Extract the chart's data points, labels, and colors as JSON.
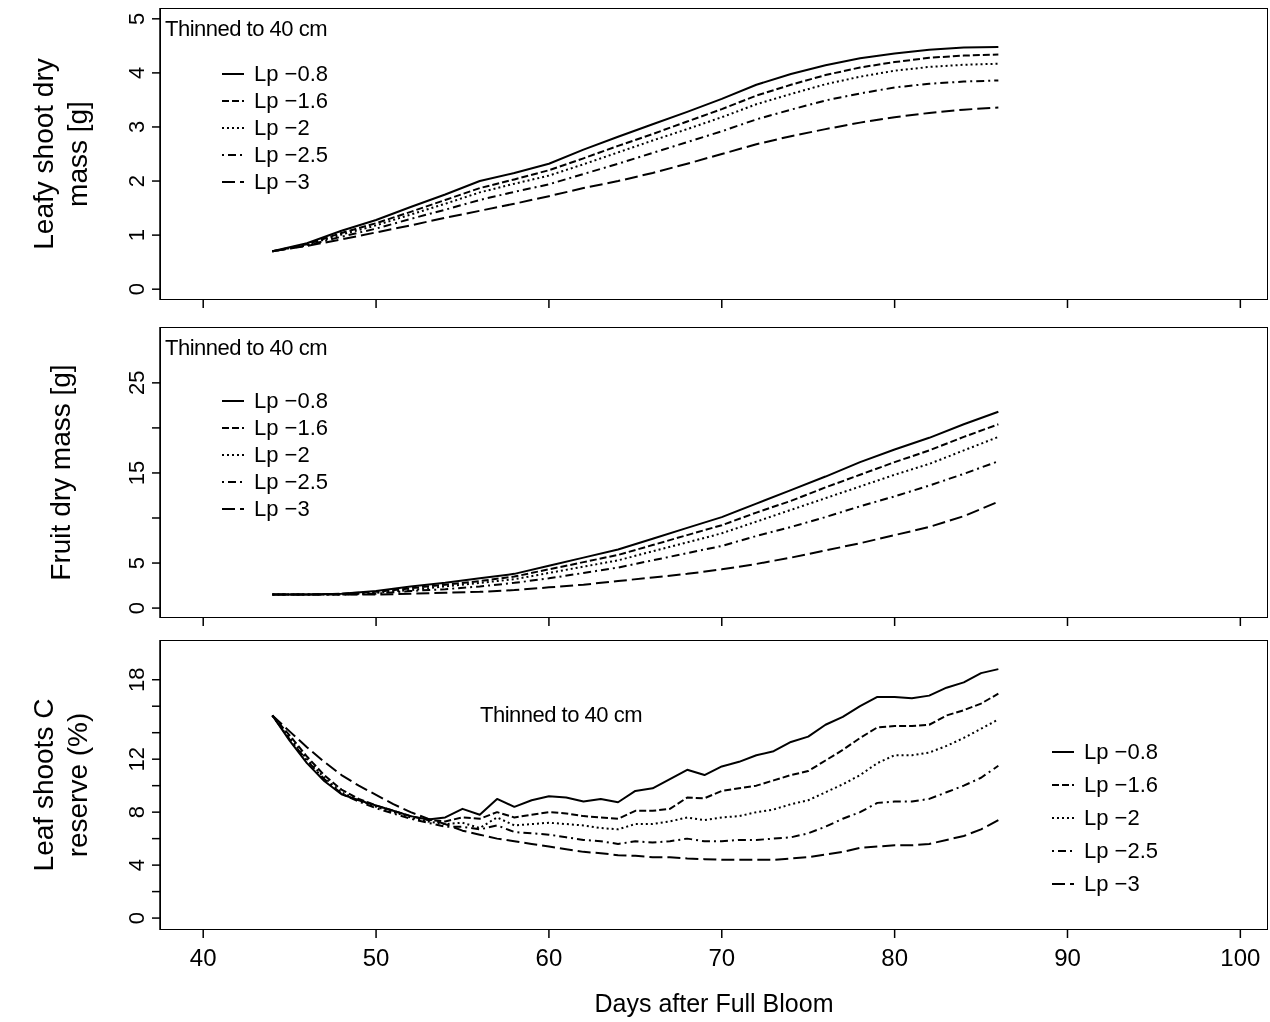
{
  "chart_data": [
    {
      "type": "line",
      "ylabel": "Leafy shoot dry mass [g]",
      "annotations": [
        "Thinned to 40 cm"
      ],
      "x": [
        44,
        46,
        48,
        50,
        52,
        54,
        56,
        58,
        60,
        62,
        64,
        66,
        68,
        70,
        72,
        74,
        76,
        78,
        80,
        82,
        84,
        86
      ],
      "xlim": [
        37.5,
        101.6
      ],
      "xticks": [
        40,
        50,
        60,
        70,
        80,
        90,
        100
      ],
      "ylim": [
        -0.2,
        5.2
      ],
      "yticks": [
        0,
        1,
        2,
        3,
        4,
        5
      ],
      "tick_labels": "y",
      "legend": "top left",
      "series": [
        {
          "name": "Lp −0.8",
          "color": "#000000",
          "line_style": "solid",
          "values": [
            0.7,
            0.85,
            1.08,
            1.28,
            1.52,
            1.75,
            2.0,
            2.15,
            2.32,
            2.58,
            2.82,
            3.05,
            3.28,
            3.52,
            3.78,
            3.98,
            4.14,
            4.27,
            4.36,
            4.43,
            4.47,
            4.48
          ]
        },
        {
          "name": "Lp −1.6",
          "color": "#000000",
          "line_style": "dashed",
          "values": [
            0.7,
            0.83,
            1.04,
            1.22,
            1.43,
            1.65,
            1.87,
            2.03,
            2.2,
            2.42,
            2.65,
            2.87,
            3.1,
            3.33,
            3.58,
            3.78,
            3.96,
            4.1,
            4.2,
            4.28,
            4.32,
            4.34
          ]
        },
        {
          "name": "Lp −2",
          "color": "#000000",
          "line_style": "dotted",
          "values": [
            0.7,
            0.82,
            1.01,
            1.18,
            1.38,
            1.58,
            1.79,
            1.95,
            2.1,
            2.31,
            2.53,
            2.75,
            2.96,
            3.18,
            3.42,
            3.61,
            3.79,
            3.93,
            4.04,
            4.11,
            4.15,
            4.17
          ]
        },
        {
          "name": "Lp −2.5",
          "color": "#000000",
          "line_style": "dashdot",
          "values": [
            0.7,
            0.81,
            0.97,
            1.12,
            1.3,
            1.47,
            1.65,
            1.8,
            1.94,
            2.13,
            2.32,
            2.52,
            2.72,
            2.92,
            3.14,
            3.32,
            3.49,
            3.62,
            3.73,
            3.8,
            3.84,
            3.86
          ]
        },
        {
          "name": "Lp −3",
          "color": "#000000",
          "line_style": "longdash",
          "values": [
            0.7,
            0.8,
            0.92,
            1.05,
            1.18,
            1.32,
            1.45,
            1.58,
            1.72,
            1.87,
            2.0,
            2.15,
            2.32,
            2.5,
            2.68,
            2.83,
            2.96,
            3.08,
            3.18,
            3.26,
            3.32,
            3.36
          ]
        }
      ]
    },
    {
      "type": "line",
      "ylabel": "Fruit dry mass [g]",
      "annotations": [
        "Thinned to 40 cm"
      ],
      "x": [
        44,
        46,
        48,
        50,
        52,
        54,
        56,
        58,
        60,
        62,
        64,
        66,
        68,
        70,
        72,
        74,
        76,
        78,
        80,
        82,
        84,
        86
      ],
      "xlim": [
        37.5,
        101.6
      ],
      "xticks": [
        40,
        50,
        60,
        70,
        80,
        90,
        100
      ],
      "ylim": [
        -1.1,
        31.2
      ],
      "yticks": [
        0,
        5,
        {
          "value": 10,
          "label": null
        },
        15,
        {
          "value": 20,
          "label": null
        },
        25
      ],
      "tick_labels": "y",
      "legend": "top left",
      "series": [
        {
          "name": "Lp −0.8",
          "color": "#000000",
          "line_style": "solid",
          "values": [
            1.5,
            1.5,
            1.6,
            1.9,
            2.4,
            2.8,
            3.3,
            3.8,
            4.7,
            5.6,
            6.5,
            7.7,
            8.9,
            10.1,
            11.6,
            13.1,
            14.6,
            16.2,
            17.6,
            18.9,
            20.4,
            21.8
          ]
        },
        {
          "name": "Lp −1.6",
          "color": "#000000",
          "line_style": "dashed",
          "values": [
            1.5,
            1.5,
            1.6,
            1.8,
            2.2,
            2.6,
            3.0,
            3.5,
            4.3,
            5.1,
            5.9,
            7.0,
            8.1,
            9.2,
            10.6,
            11.9,
            13.4,
            14.8,
            16.2,
            17.5,
            19.0,
            20.4
          ]
        },
        {
          "name": "Lp −2",
          "color": "#000000",
          "line_style": "dotted",
          "values": [
            1.5,
            1.5,
            1.5,
            1.7,
            2.0,
            2.4,
            2.8,
            3.2,
            3.9,
            4.6,
            5.3,
            6.3,
            7.3,
            8.3,
            9.6,
            10.9,
            12.2,
            13.5,
            14.8,
            16.0,
            17.5,
            19.0
          ]
        },
        {
          "name": "Lp −2.5",
          "color": "#000000",
          "line_style": "dashdot",
          "values": [
            1.5,
            1.5,
            1.5,
            1.6,
            1.9,
            2.1,
            2.4,
            2.8,
            3.3,
            3.9,
            4.5,
            5.3,
            6.1,
            6.9,
            8.0,
            9.0,
            10.1,
            11.3,
            12.4,
            13.6,
            14.9,
            16.3
          ]
        },
        {
          "name": "Lp −3",
          "color": "#000000",
          "line_style": "longdash",
          "values": [
            1.5,
            1.5,
            1.5,
            1.5,
            1.6,
            1.7,
            1.8,
            2.0,
            2.3,
            2.6,
            3.0,
            3.4,
            3.8,
            4.3,
            4.9,
            5.6,
            6.4,
            7.2,
            8.1,
            9.0,
            10.2,
            11.8
          ]
        }
      ]
    },
    {
      "type": "line",
      "ylabel": "Leaf shoots C reserve (%)",
      "xlabel": "Days after Full Bloom",
      "annotations": [
        "Thinned to 40 cm"
      ],
      "x": [
        44,
        45,
        46,
        47,
        48,
        49,
        50,
        51,
        52,
        53,
        54,
        55,
        56,
        57,
        58,
        59,
        60,
        61,
        62,
        63,
        64,
        65,
        66,
        67,
        68,
        69,
        70,
        71,
        72,
        73,
        74,
        75,
        76,
        77,
        78,
        79,
        80,
        81,
        82,
        83,
        84,
        85,
        86
      ],
      "xlim": [
        37.5,
        101.6
      ],
      "xticks": [
        40,
        50,
        60,
        70,
        80,
        90,
        100
      ],
      "ylim": [
        -0.9,
        21
      ],
      "yticks": [
        0,
        {
          "value": 2,
          "label": null
        },
        4,
        {
          "value": 6,
          "label": null
        },
        8,
        {
          "value": 10,
          "label": null
        },
        12,
        {
          "value": 14,
          "label": null
        },
        {
          "value": 16,
          "label": null
        },
        18
      ],
      "legend": "right",
      "series": [
        {
          "name": "Lp −0.8",
          "color": "#000000",
          "line_style": "solid",
          "values": [
            15.3,
            13.4,
            11.7,
            10.35,
            9.35,
            8.9,
            8.5,
            8.1,
            7.7,
            7.45,
            7.6,
            8.25,
            7.8,
            9.0,
            8.4,
            8.9,
            9.2,
            9.1,
            8.8,
            9.0,
            8.75,
            9.6,
            9.8,
            10.5,
            11.2,
            10.8,
            11.45,
            11.8,
            12.3,
            12.6,
            13.3,
            13.7,
            14.6,
            15.2,
            16.0,
            16.7,
            16.7,
            16.6,
            16.8,
            17.4,
            17.8,
            18.5,
            18.8
          ]
        },
        {
          "name": "Lp −1.6",
          "color": "#000000",
          "line_style": "dashed",
          "values": [
            15.3,
            13.8,
            12.2,
            10.8,
            9.7,
            9.0,
            8.5,
            8.1,
            7.7,
            7.4,
            7.3,
            7.6,
            7.5,
            8.0,
            7.6,
            7.8,
            8.0,
            7.9,
            7.7,
            7.6,
            7.5,
            8.1,
            8.1,
            8.25,
            9.1,
            9.05,
            9.6,
            9.8,
            10.0,
            10.4,
            10.8,
            11.1,
            11.9,
            12.7,
            13.6,
            14.4,
            14.5,
            14.5,
            14.6,
            15.3,
            15.7,
            16.2,
            16.95
          ]
        },
        {
          "name": "Lp −2",
          "color": "#000000",
          "line_style": "dotted",
          "values": [
            15.3,
            13.6,
            12.0,
            10.6,
            9.5,
            8.9,
            8.4,
            8.0,
            7.6,
            7.3,
            7.1,
            7.2,
            6.8,
            7.6,
            7.0,
            7.1,
            7.2,
            7.1,
            7.0,
            6.8,
            6.7,
            7.1,
            7.1,
            7.3,
            7.6,
            7.4,
            7.6,
            7.7,
            8.0,
            8.2,
            8.6,
            8.9,
            9.5,
            10.1,
            10.8,
            11.7,
            12.3,
            12.3,
            12.5,
            13.0,
            13.6,
            14.3,
            15.0
          ]
        },
        {
          "name": "Lp −2.5",
          "color": "#000000",
          "line_style": "dashdot",
          "values": [
            15.3,
            13.5,
            11.9,
            10.5,
            9.4,
            8.8,
            8.3,
            7.9,
            7.5,
            7.2,
            6.9,
            6.9,
            6.7,
            7.0,
            6.5,
            6.4,
            6.3,
            6.1,
            5.9,
            5.8,
            5.6,
            5.8,
            5.7,
            5.8,
            6.0,
            5.8,
            5.8,
            5.9,
            5.9,
            6.0,
            6.1,
            6.4,
            6.9,
            7.5,
            8.0,
            8.7,
            8.8,
            8.8,
            9.0,
            9.5,
            10.0,
            10.6,
            11.5
          ]
        },
        {
          "name": "Lp −3",
          "color": "#000000",
          "line_style": "longdash",
          "values": [
            15.3,
            14.1,
            12.9,
            11.8,
            10.8,
            10.0,
            9.3,
            8.6,
            8.0,
            7.5,
            7.1,
            6.6,
            6.3,
            6.0,
            5.8,
            5.6,
            5.4,
            5.2,
            5.0,
            4.9,
            4.75,
            4.7,
            4.6,
            4.6,
            4.5,
            4.45,
            4.4,
            4.4,
            4.4,
            4.4,
            4.5,
            4.6,
            4.8,
            5.0,
            5.3,
            5.4,
            5.5,
            5.5,
            5.6,
            5.9,
            6.2,
            6.7,
            7.4
          ]
        }
      ]
    }
  ]
}
